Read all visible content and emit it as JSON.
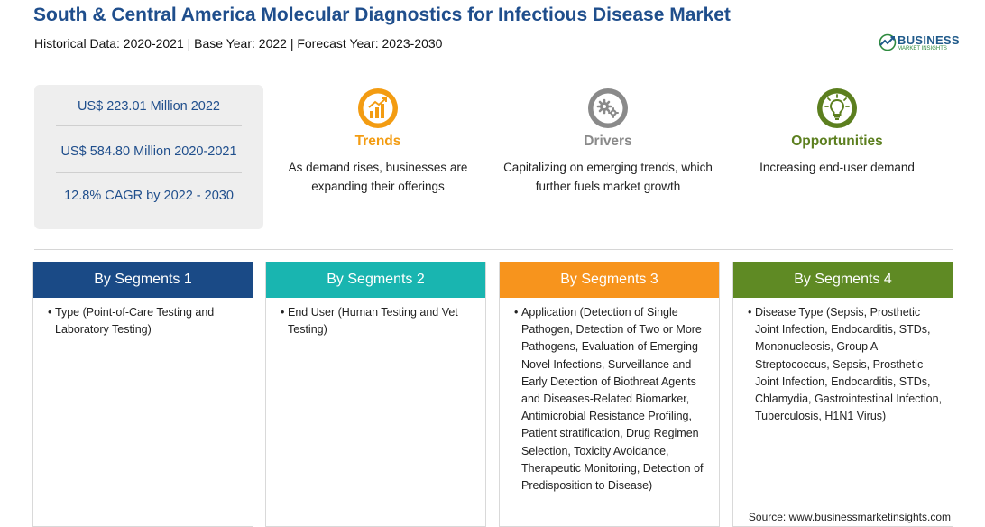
{
  "header": {
    "title": "South & Central America Molecular Diagnostics for Infectious Disease Market",
    "subtitle": "Historical Data: 2020-2021 | Base Year: 2022 | Forecast Year: 2023-2030"
  },
  "logo": {
    "name": "BUSINESS",
    "tagline": "MARKET INSIGHTS"
  },
  "stats": [
    "US$ 223.01 Million 2022",
    "US$ 584.80 Million 2020-2021",
    "12.8% CAGR by 2022 - 2030"
  ],
  "features": [
    {
      "title": "Trends",
      "text": "As demand rises, businesses are expanding their offerings",
      "color": "#f39c12",
      "icon": "growth-chart-icon"
    },
    {
      "title": "Drivers",
      "text": "Capitalizing on emerging trends, which further fuels market growth",
      "color": "#8a8a8a",
      "icon": "gears-icon"
    },
    {
      "title": "Opportunities",
      "text": "Increasing end-user demand",
      "color": "#5c7f1f",
      "icon": "lightbulb-icon"
    }
  ],
  "segments": [
    {
      "title": "By Segments 1",
      "color": "#1a4a86",
      "text": "Type (Point-of-Care Testing and Laboratory Testing)"
    },
    {
      "title": "By Segments 2",
      "color": "#19b5b0",
      "text": "End User (Human Testing and Vet Testing)"
    },
    {
      "title": "By Segments 3",
      "color": "#f7941d",
      "text": "Application (Detection of Single Pathogen, Detection of Two or More Pathogens, Evaluation of Emerging Novel Infections, Surveillance and Early Detection of Biothreat Agents and Diseases-Related Biomarker, Antimicrobial Resistance Profiling, Patient stratification, Drug Regimen Selection, Toxicity Avoidance, Therapeutic Monitoring, Detection of Predisposition to Disease)"
    },
    {
      "title": "By Segments 4",
      "color": "#5f8a24",
      "text": "Disease Type (Sepsis, Prosthetic Joint Infection, Endocarditis, STDs, Mononucleosis, Group A Streptococcus, Sepsis, Prosthetic Joint Infection, Endocarditis, STDs, Chlamydia, Gastrointestinal Infection, Tuberculosis, H1N1 Virus)"
    }
  ],
  "bullet": "•",
  "source": "Source: www.businessmarketinsights.com"
}
